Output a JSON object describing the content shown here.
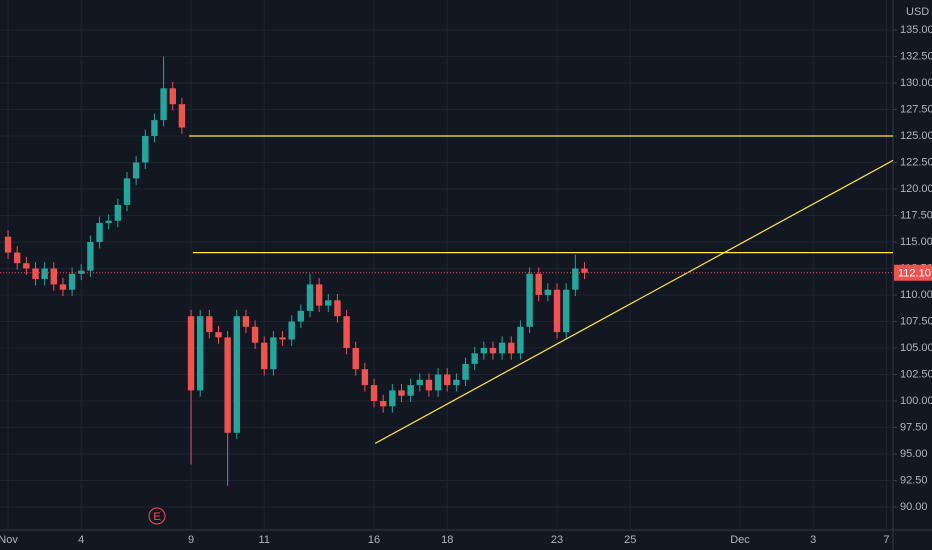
{
  "chart_data": {
    "type": "candlestick",
    "currency": "USD",
    "x": [
      0,
      0.25,
      0.5,
      0.75,
      1,
      1.25,
      1.5,
      1.75,
      2,
      2.25,
      2.5,
      2.75,
      3,
      3.25,
      3.5,
      3.75,
      4,
      4.25,
      4.5,
      4.75,
      5,
      5.25,
      5.5,
      5.75,
      6,
      6.25,
      6.5,
      6.75,
      7,
      7.25,
      7.5,
      7.75,
      8,
      8.25,
      8.5,
      8.75,
      9,
      9.25,
      9.5,
      9.75,
      10,
      10.25,
      10.5,
      10.75,
      11,
      11.25,
      11.5,
      11.75,
      12,
      12.25,
      12.5,
      12.75,
      13,
      13.25,
      13.5,
      13.75,
      14,
      14.25,
      14.5,
      14.75,
      15,
      15.25,
      15.5,
      15.75
    ],
    "open": [
      115.5,
      114,
      113,
      112.5,
      111.5,
      112.5,
      111,
      110.5,
      112,
      112.3,
      115,
      116.8,
      117,
      118.5,
      121,
      122.5,
      125,
      126.5,
      129.5,
      128,
      108,
      101,
      108,
      106.5,
      106,
      97,
      108,
      107,
      105.5,
      103,
      106,
      105.8,
      107.5,
      108.5,
      111,
      109,
      109.5,
      108,
      105,
      103,
      101.5,
      100,
      99.5,
      101,
      100.5,
      101.5,
      102,
      101,
      102.5,
      101.5,
      102,
      103.5,
      104.5,
      105,
      104.5,
      105.5,
      104.5,
      107,
      112,
      110,
      110.5,
      106.5,
      110.5,
      112.5
    ],
    "high": [
      116.1,
      114.6,
      113.6,
      113.1,
      113.1,
      113.1,
      111.6,
      112.6,
      112.9,
      115.6,
      117.4,
      117.6,
      119.1,
      121.6,
      123.1,
      125.6,
      127.1,
      132.5,
      130.1,
      128.6,
      108.6,
      108.6,
      108.6,
      107.1,
      106.6,
      108.6,
      108.6,
      107.6,
      106.1,
      106.6,
      106.6,
      108.1,
      109.1,
      112,
      111.6,
      110.1,
      110.1,
      108.6,
      105.6,
      103.6,
      102.1,
      100.6,
      101.6,
      101.6,
      102.1,
      102.6,
      102.6,
      103.1,
      103.1,
      102.6,
      104.1,
      105.1,
      105.6,
      105.6,
      106.1,
      106.1,
      107.6,
      112.6,
      112.6,
      111.1,
      111.1,
      111.1,
      113.8,
      113.1
    ],
    "low": [
      113.4,
      112.4,
      111.9,
      110.9,
      110.9,
      110.4,
      109.9,
      109.9,
      111.4,
      111.7,
      114.4,
      116.2,
      116.4,
      117.9,
      120.4,
      121.9,
      124.4,
      125.9,
      127.4,
      125.2,
      94,
      100.4,
      105.9,
      105.4,
      92,
      96.4,
      106.4,
      104.9,
      102.4,
      102.4,
      105.2,
      105.2,
      106.9,
      107.9,
      108.4,
      108.4,
      107.4,
      104.4,
      102.4,
      100.9,
      99.4,
      98.9,
      98.9,
      99.9,
      99.9,
      100.9,
      100.4,
      100.4,
      100.9,
      100.9,
      101.4,
      102.9,
      103.9,
      103.9,
      103.9,
      103.9,
      103.9,
      106.4,
      109.4,
      109.4,
      105.9,
      105.9,
      109.9,
      111.5
    ],
    "close": [
      114,
      113,
      112.5,
      111.5,
      112.5,
      111,
      110.5,
      112,
      112.3,
      115,
      116.8,
      117,
      118.5,
      121,
      122.5,
      125,
      126.5,
      129.5,
      128,
      125.8,
      101,
      108,
      106.5,
      106,
      97,
      108,
      107,
      105.5,
      103,
      106,
      105.8,
      107.5,
      108.5,
      111,
      109,
      109.5,
      108,
      105,
      103,
      101.5,
      100,
      99.5,
      101,
      100.5,
      101.5,
      102,
      101,
      102.5,
      101.5,
      102,
      103.5,
      104.5,
      105,
      104.5,
      105.5,
      104.5,
      107,
      112,
      110,
      110.5,
      106.5,
      110.5,
      112.5,
      112.1
    ],
    "up_color": "#26a69a",
    "down_color": "#ef5350",
    "xlim": [
      -0.22,
      24.18
    ],
    "ylim": [
      87.83,
      137.83
    ],
    "xticks": [
      {
        "value": 0,
        "label": "Nov"
      },
      {
        "value": 2,
        "label": "4"
      },
      {
        "value": 5,
        "label": "9"
      },
      {
        "value": 7,
        "label": "11"
      },
      {
        "value": 10,
        "label": "16"
      },
      {
        "value": 12,
        "label": "18"
      },
      {
        "value": 15,
        "label": "23"
      },
      {
        "value": 17,
        "label": "25"
      },
      {
        "value": 20,
        "label": "Dec"
      },
      {
        "value": 22,
        "label": "3"
      },
      {
        "value": 24,
        "label": "7"
      }
    ],
    "yticks": [
      {
        "value": 90,
        "label": "90.00"
      },
      {
        "value": 92.5,
        "label": "92.50"
      },
      {
        "value": 95,
        "label": "95.00"
      },
      {
        "value": 97.5,
        "label": "97.50"
      },
      {
        "value": 100,
        "label": "100.00"
      },
      {
        "value": 102.5,
        "label": "102.50"
      },
      {
        "value": 105,
        "label": "105.00"
      },
      {
        "value": 107.5,
        "label": "107.50"
      },
      {
        "value": 110,
        "label": "110.00"
      },
      {
        "value": 112.5,
        "label": "112.50"
      },
      {
        "value": 115,
        "label": "115.00"
      },
      {
        "value": 117.5,
        "label": "117.50"
      },
      {
        "value": 120,
        "label": "120.00"
      },
      {
        "value": 122.5,
        "label": "122.50"
      },
      {
        "value": 125,
        "label": "125.00"
      },
      {
        "value": 127.5,
        "label": "127.50"
      },
      {
        "value": 130,
        "label": "130.00"
      },
      {
        "value": 132.5,
        "label": "132.50"
      },
      {
        "value": 135,
        "label": "135.00"
      }
    ],
    "grid": true,
    "lines": [
      {
        "color": "#ffeb3b",
        "x": [
          4.95,
          24.18
        ],
        "y": [
          125,
          125
        ]
      },
      {
        "color": "#ffeb3b",
        "x": [
          5.05,
          24.18
        ],
        "y": [
          114,
          114
        ]
      },
      {
        "color": "#ffeb3b",
        "x": [
          10.03,
          24.18
        ],
        "y": [
          96,
          122.7
        ]
      }
    ],
    "last_price": {
      "value": 112.1,
      "label": "112.10",
      "color": "#ef5350"
    },
    "events": [
      {
        "x": 4.07,
        "label": "E",
        "color": "#ef5350"
      }
    ]
  }
}
